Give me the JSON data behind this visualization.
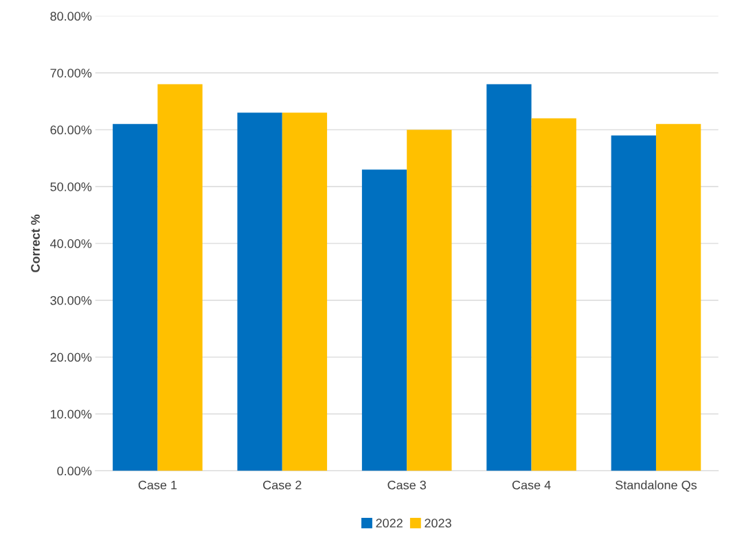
{
  "chart_data": {
    "type": "bar",
    "ylabel": "Correct %",
    "categories": [
      "Case 1",
      "Case 2",
      "Case 3",
      "Case 4",
      "Standalone Qs"
    ],
    "series": [
      {
        "name": "2022",
        "color": "#0070c0",
        "values": [
          61,
          63,
          53,
          68,
          59
        ]
      },
      {
        "name": "2023",
        "color": "#ffc000",
        "values": [
          68,
          63,
          60,
          62,
          61
        ]
      }
    ],
    "ylim": [
      0,
      80
    ],
    "yticks": [
      {
        "value": 0,
        "label": "0.00%"
      },
      {
        "value": 10,
        "label": "10.00%"
      },
      {
        "value": 20,
        "label": "20.00%"
      },
      {
        "value": 30,
        "label": "30.00%"
      },
      {
        "value": 40,
        "label": "40.00%"
      },
      {
        "value": 50,
        "label": "50.00%"
      },
      {
        "value": 60,
        "label": "60.00%"
      },
      {
        "value": 70,
        "label": "70.00%"
      },
      {
        "value": 80,
        "label": "80.00%"
      }
    ],
    "grid": "y",
    "legend": "bottom"
  }
}
